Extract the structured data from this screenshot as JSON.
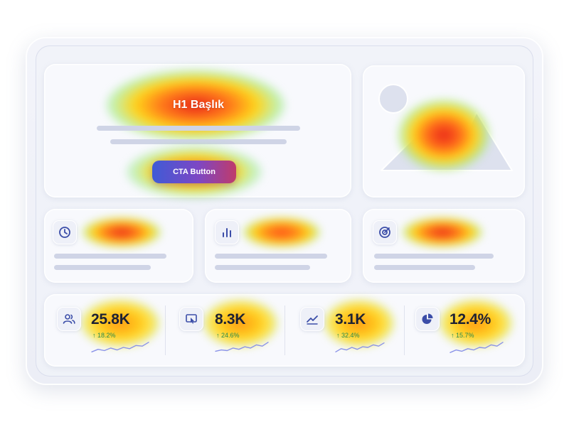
{
  "hero": {
    "title": "H1 Başlık",
    "cta_label": "CTA Button"
  },
  "features": [
    {
      "icon": "clock-icon"
    },
    {
      "icon": "bar-chart-icon"
    },
    {
      "icon": "target-icon"
    }
  ],
  "stats": [
    {
      "icon": "users-icon",
      "value": "25.8K",
      "change": "↑ 18.2%",
      "trend": [
        0.15,
        0.35,
        0.25,
        0.45,
        0.3,
        0.5,
        0.4,
        0.65,
        0.6,
        0.9
      ]
    },
    {
      "icon": "cursor-click-icon",
      "value": "8.3K",
      "change": "↑ 24.6%",
      "trend": [
        0.2,
        0.3,
        0.25,
        0.45,
        0.35,
        0.55,
        0.45,
        0.7,
        0.6,
        0.9
      ]
    },
    {
      "icon": "trend-up-icon",
      "value": "3.1K",
      "change": "↑ 32.4%",
      "trend": [
        0.15,
        0.4,
        0.3,
        0.5,
        0.35,
        0.55,
        0.5,
        0.7,
        0.6,
        0.85
      ]
    },
    {
      "icon": "pie-chart-icon",
      "value": "12.4%",
      "change": "↑ 15.7%",
      "trend": [
        0.1,
        0.3,
        0.2,
        0.4,
        0.3,
        0.5,
        0.45,
        0.7,
        0.6,
        0.9
      ]
    }
  ],
  "colors": {
    "accent_blue": "#3f5bd6",
    "accent_purple": "#7d47c4",
    "positive": "#2a8a4e",
    "sparkline": "#8a93e8",
    "heat_hot": "#e81e1e",
    "heat_warm": "#ffcc00"
  }
}
